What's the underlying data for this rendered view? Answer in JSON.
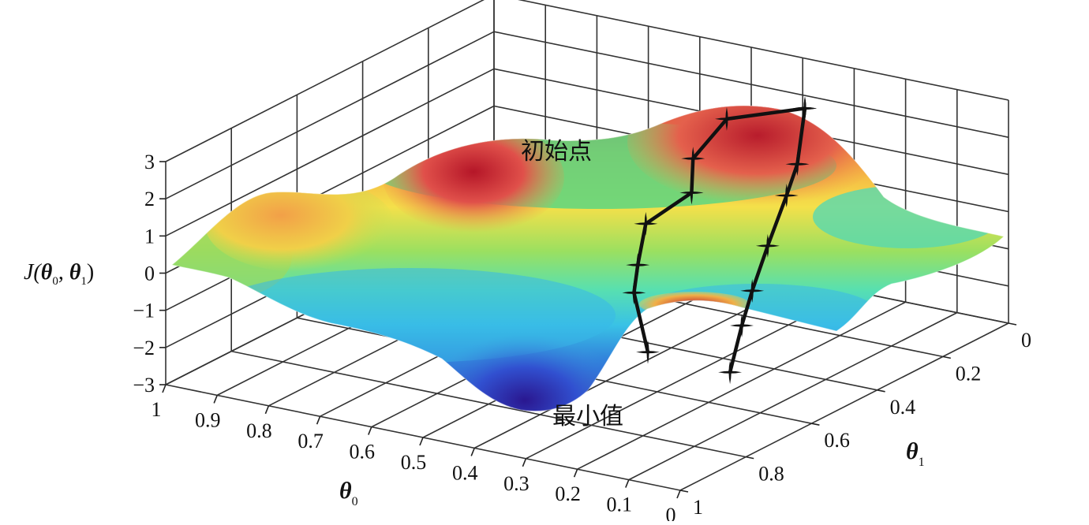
{
  "chart_data": {
    "type": "surface",
    "z_axis": {
      "label_main": "J(",
      "label_sub0": "θ",
      "label_sub0_index": "0",
      "label_comma": ", ",
      "label_sub1": "θ",
      "label_sub1_index": "1",
      "label_close": ")",
      "ticks": [
        "3",
        "2",
        "1",
        "0",
        "−1",
        "−2",
        "−3"
      ],
      "range": [
        -3,
        3
      ]
    },
    "theta0_axis": {
      "label": "θ",
      "label_index": "0",
      "ticks": [
        "1",
        "0.9",
        "0.8",
        "0.7",
        "0.6",
        "0.5",
        "0.4",
        "0.3",
        "0.2",
        "0.1",
        "0"
      ],
      "range": [
        1,
        0
      ]
    },
    "theta1_axis": {
      "label": "θ",
      "label_index": "1",
      "ticks": [
        "0",
        "0.2",
        "0.4",
        "0.6",
        "0.8",
        "1"
      ],
      "range": [
        0,
        1
      ]
    },
    "annotations": {
      "start": "初始点",
      "minimum": "最小值"
    },
    "colormap": [
      "#3a1fa0",
      "#2f6fd8",
      "#39c2e6",
      "#58e0b0",
      "#9be060",
      "#f4e04a",
      "#f6a140",
      "#d8303a"
    ],
    "paths": [
      {
        "points": [
          {
            "theta0": 0.3,
            "theta1": 0.15,
            "J": 2.6
          },
          {
            "theta0": 0.27,
            "theta1": 0.22,
            "J": 1.5
          },
          {
            "theta0": 0.24,
            "theta1": 0.3,
            "J": 1.1
          },
          {
            "theta0": 0.2,
            "theta1": 0.42,
            "J": 0.4
          },
          {
            "theta0": 0.16,
            "theta1": 0.53,
            "J": -0.2
          },
          {
            "theta0": 0.11,
            "theta1": 0.64,
            "J": -0.5
          },
          {
            "theta0": 0.05,
            "theta1": 0.77,
            "J": -1.0
          }
        ]
      },
      {
        "points": [
          {
            "theta0": 0.3,
            "theta1": 0.15,
            "J": 2.6
          },
          {
            "theta0": 0.42,
            "theta1": 0.2,
            "J": 2.2
          },
          {
            "theta0": 0.46,
            "theta1": 0.24,
            "J": 1.2
          },
          {
            "theta0": 0.45,
            "theta1": 0.26,
            "J": 0.4
          },
          {
            "theta0": 0.52,
            "theta1": 0.29,
            "J": -0.5
          },
          {
            "theta0": 0.51,
            "theta1": 0.33,
            "J": -1.4
          },
          {
            "theta0": 0.46,
            "theta1": 0.42,
            "J": -1.6
          },
          {
            "theta0": 0.35,
            "theta1": 0.55,
            "J": -2.3
          }
        ]
      }
    ]
  }
}
